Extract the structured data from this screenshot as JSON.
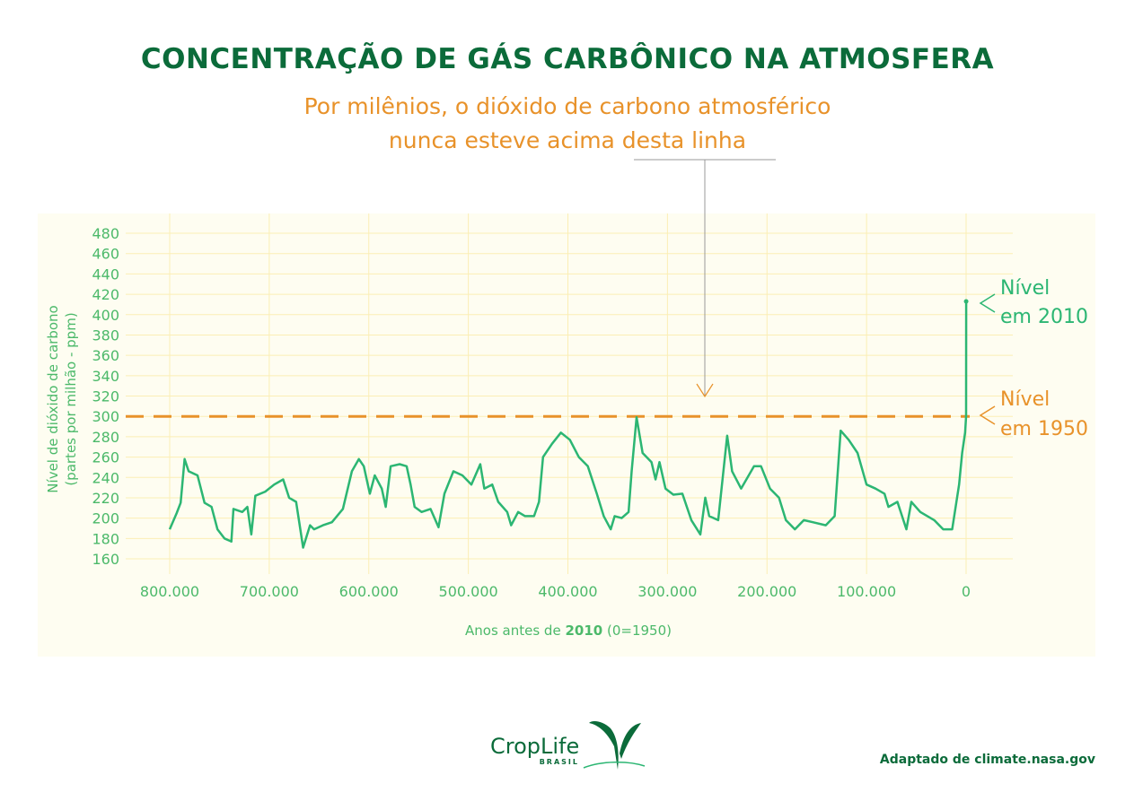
{
  "chart_data": {
    "type": "line",
    "title": "CONCENTRAÇÃO DE GÁS CARBÔNICO NA ATMOSFERA",
    "subtitle": [
      "Por milênios, o dióxido de carbono atmosférico",
      "nunca esteve acima desta linha"
    ],
    "xlabel_parts": [
      "Anos antes de ",
      "2010",
      " (0=1950)"
    ],
    "ylabel": [
      "Nível de dióxido de carbono",
      "(partes por milhão - ppm)"
    ],
    "xlim": [
      800000,
      0
    ],
    "ylim": [
      160,
      480
    ],
    "x_ticks": [
      800000,
      700000,
      600000,
      500000,
      400000,
      300000,
      200000,
      100000,
      0
    ],
    "x_tick_labels": [
      "800.000",
      "700.000",
      "600.000",
      "500.000",
      "400.000",
      "300.000",
      "200.000",
      "100.000",
      "0"
    ],
    "y_ticks": [
      160,
      180,
      200,
      220,
      240,
      260,
      280,
      300,
      320,
      340,
      360,
      380,
      400,
      420,
      440,
      460,
      480
    ],
    "grid": true,
    "reference_line": {
      "value": 300,
      "style": "dashed",
      "color": "#e8922a"
    },
    "series": [
      {
        "color": "#2cb673",
        "x": [
          800000,
          793000,
          789000,
          785000,
          781000,
          772000,
          765000,
          758000,
          752000,
          745000,
          738000,
          736000,
          727000,
          722000,
          718000,
          714000,
          704000,
          695000,
          686000,
          680000,
          673000,
          666000,
          659000,
          655000,
          646000,
          637000,
          626000,
          617000,
          610000,
          605000,
          599000,
          594000,
          587000,
          583000,
          578000,
          569000,
          562000,
          558000,
          554000,
          547000,
          538000,
          530000,
          524000,
          515000,
          506000,
          497000,
          488000,
          484000,
          476000,
          470000,
          461000,
          457000,
          450000,
          443000,
          434000,
          429000,
          425000,
          416000,
          407000,
          398000,
          389000,
          380000,
          371000,
          364000,
          357000,
          353000,
          346000,
          339000,
          336000,
          331000,
          325000,
          316000,
          312000,
          308000,
          302000,
          294000,
          285000,
          276000,
          267000,
          262000,
          258000,
          249000,
          240000,
          235000,
          226000,
          213000,
          206000,
          197000,
          188000,
          181000,
          172000,
          163000,
          154000,
          141000,
          132000,
          126000,
          118000,
          109000,
          100000,
          91000,
          82000,
          78000,
          69000,
          60000,
          55000,
          46000,
          32000,
          23000,
          14000,
          7000,
          4000,
          1000,
          0,
          -60
        ],
        "y": [
          189,
          205,
          215,
          258,
          246,
          242,
          215,
          211,
          189,
          180,
          177,
          209,
          206,
          211,
          184,
          222,
          226,
          233,
          238,
          220,
          216,
          171,
          193,
          189,
          193,
          196,
          209,
          246,
          258,
          251,
          224,
          242,
          229,
          211,
          251,
          253,
          251,
          233,
          211,
          206,
          209,
          191,
          224,
          246,
          242,
          233,
          253,
          229,
          233,
          216,
          206,
          193,
          206,
          202,
          202,
          216,
          260,
          273,
          284,
          277,
          260,
          251,
          224,
          202,
          189,
          202,
          200,
          206,
          246,
          299,
          264,
          255,
          238,
          255,
          229,
          223,
          224,
          198,
          184,
          220,
          202,
          198,
          281,
          246,
          229,
          251,
          251,
          229,
          220,
          198,
          189,
          198,
          196,
          193,
          202,
          286,
          277,
          264,
          233,
          229,
          224,
          211,
          216,
          189,
          216,
          206,
          198,
          189,
          189,
          233,
          264,
          284,
          300,
          413
        ]
      }
    ],
    "annotations": [
      {
        "lines": [
          "Nível",
          "em 2010"
        ],
        "color": "#2cb673"
      },
      {
        "lines": [
          "Nível",
          "em 1950"
        ],
        "color": "#e8922a"
      }
    ]
  },
  "footer": {
    "logo_text": "CropLife",
    "logo_sub": "BRASIL",
    "source": "Adaptado de climate.nasa.gov"
  },
  "colors": {
    "title": "#0b6b3a",
    "accent": "#e8922a",
    "line": "#2cb673",
    "panel": "#fefdf1",
    "grid": "#fbeeb5"
  }
}
